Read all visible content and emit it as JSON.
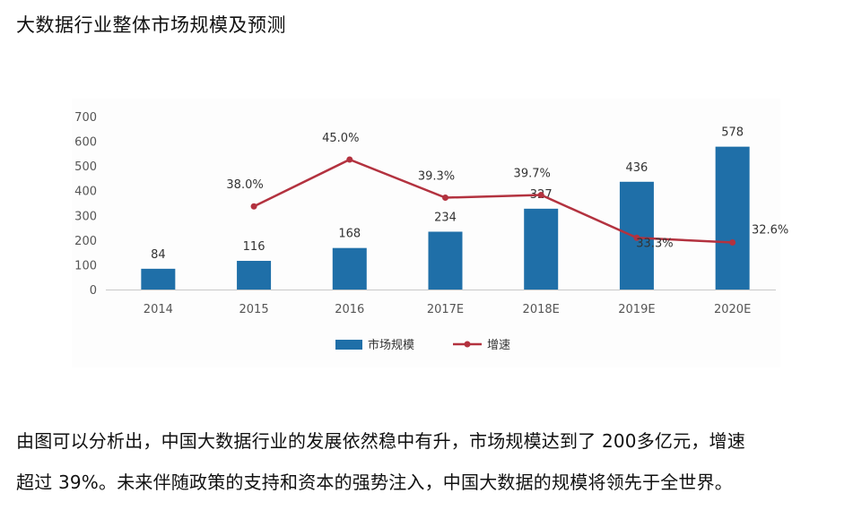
{
  "page": {
    "title": "大数据行业整体市场规模及预测",
    "paragraph_lines": [
      "由图可以分析出，中国大数据行业的发展依然稳中有升，市场规模达到了 200多亿元，增速",
      "超过 39%。未来伴随政策的支持和资本的强势注入，中国大数据的规模将领先于全世界。"
    ]
  },
  "chart_data": {
    "type": "bar",
    "categories": [
      "2014",
      "2015",
      "2016",
      "2017E",
      "2018E",
      "2019E",
      "2020E"
    ],
    "series": [
      {
        "name": "市场规模",
        "type": "bar",
        "values": [
          84,
          116,
          168,
          234,
          327,
          436,
          578
        ],
        "labels": [
          "84",
          "116",
          "168",
          "234",
          "327",
          "436",
          "578"
        ],
        "color": "#1f6fa8"
      },
      {
        "name": "增速",
        "type": "line",
        "values": [
          null,
          38.0,
          45.0,
          39.3,
          39.7,
          33.3,
          32.6
        ],
        "labels": [
          "",
          "38.0%",
          "45.0%",
          "39.3%",
          "39.7%",
          "33.3%",
          "32.6%"
        ],
        "color": "#b3323f"
      }
    ],
    "yticks": [
      "0",
      "100",
      "200",
      "300",
      "400",
      "500",
      "600",
      "700"
    ],
    "ylim": [
      0,
      700
    ],
    "grid": false,
    "legend_position": "bottom-center"
  }
}
